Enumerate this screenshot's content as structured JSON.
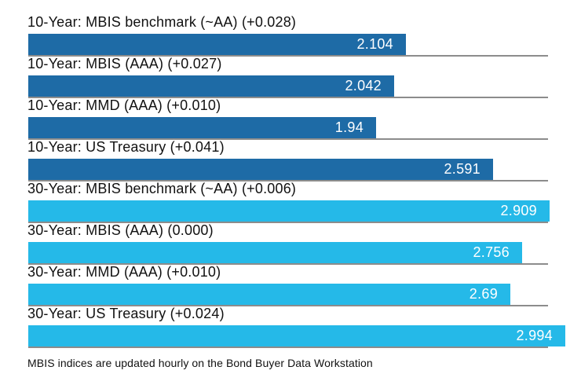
{
  "chart_data": {
    "type": "bar",
    "orientation": "horizontal",
    "bars": [
      {
        "label": "10-Year: MBIS benchmark (~AA) (+0.028)",
        "series": "10-Year",
        "value": 2.104,
        "display_value": "2.104"
      },
      {
        "label": "10-Year: MBIS (AAA) (+0.027)",
        "series": "10-Year",
        "value": 2.042,
        "display_value": "2.042"
      },
      {
        "label": "10-Year: MMD (AAA) (+0.010)",
        "series": "10-Year",
        "value": 1.94,
        "display_value": "1.94"
      },
      {
        "label": "10-Year: US Treasury (+0.041)",
        "series": "10-Year",
        "value": 2.591,
        "display_value": "2.591"
      },
      {
        "label": "30-Year: MBIS benchmark (~AA) (+0.006)",
        "series": "30-Year",
        "value": 2.909,
        "display_value": "2.909"
      },
      {
        "label": "30-Year: MBIS (AAA) (0.000)",
        "series": "30-Year",
        "value": 2.756,
        "display_value": "2.756"
      },
      {
        "label": "30-Year: MMD (AAA) (+0.010)",
        "series": "30-Year",
        "value": 2.69,
        "display_value": "2.69"
      },
      {
        "label": "30-Year: US Treasury (+0.024)",
        "series": "30-Year",
        "value": 2.994,
        "display_value": "2.994"
      }
    ],
    "series_colors": {
      "10-Year": "#1e6ba6",
      "30-Year": "#25b9e8"
    },
    "value_label_color": "#ffffff",
    "gridline_color": "#8c8c8c",
    "label_color": "#111111",
    "xlim": [
      0,
      3.0
    ],
    "grid": "per-row baseline only",
    "legend": "none",
    "title": "",
    "xlabel": "",
    "ylabel": "",
    "footnote": "MBIS indices are updated hourly on the Bond Buyer Data Workstation"
  }
}
